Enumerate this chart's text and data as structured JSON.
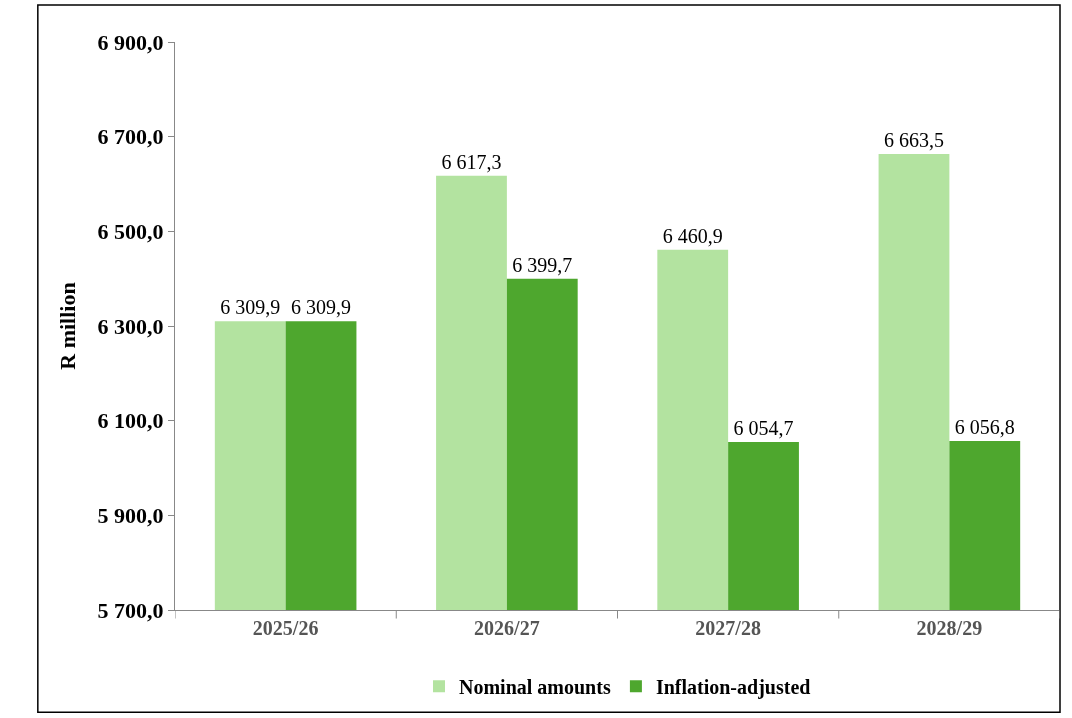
{
  "chart_data": {
    "type": "bar",
    "ylabel": "R million",
    "categories": [
      "2025/26",
      "2026/27",
      "2027/28",
      "2028/29"
    ],
    "series": [
      {
        "name": "Nominal amounts",
        "color": "#b3e3a0",
        "values": [
          6309.9,
          6617.3,
          6460.9,
          6663.5
        ],
        "value_labels": [
          "6 309,9",
          "6 617,3",
          "6 460,9",
          "6 663,5"
        ]
      },
      {
        "name": "Inflation-adjusted",
        "color": "#4ea72e",
        "values": [
          6309.9,
          6399.7,
          6054.7,
          6056.8
        ],
        "value_labels": [
          "6 309,9",
          "6 399,7",
          "6 054,7",
          "6 056,8"
        ]
      }
    ],
    "ylim": [
      5700,
      6900
    ],
    "yticks": [
      {
        "value": 5700,
        "label": "5 700,0"
      },
      {
        "value": 5900,
        "label": "5 900,0"
      },
      {
        "value": 6100,
        "label": "6 100,0"
      },
      {
        "value": 6300,
        "label": "6 300,0"
      },
      {
        "value": 6500,
        "label": "6 500,0"
      },
      {
        "value": 6700,
        "label": "6 700,0"
      },
      {
        "value": 6900,
        "label": "6 900,0"
      }
    ],
    "legend": "bottom"
  }
}
